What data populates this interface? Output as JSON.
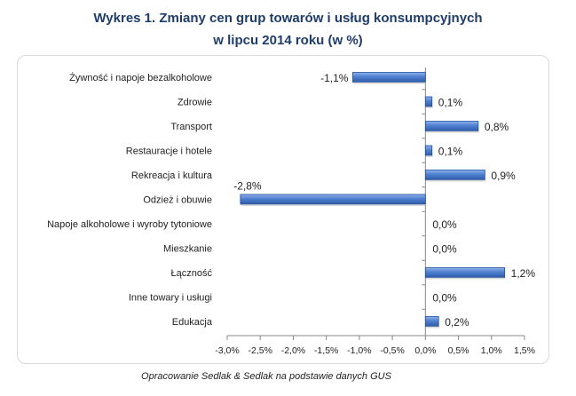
{
  "title_line1": "Wykres 1. Zmiany cen grup towarów i usług konsumpcyjnych",
  "title_line2": "w lipcu 2014 roku (w %)",
  "caption": "Opracowanie Sedlak & Sedlak na podstawie danych GUS",
  "colors": {
    "bar": "#4f7fcf",
    "bar_edge": "#1f4f9c",
    "title": "#1f3d6b"
  },
  "chart_data": {
    "type": "bar",
    "orientation": "horizontal",
    "categories": [
      "Żywność i napoje bezalkoholowe",
      "Zdrowie",
      "Transport",
      "Restauracje i hotele",
      "Rekreacja i kultura",
      "Odzież i obuwie",
      "Napoje alkoholowe i wyroby tytoniowe",
      "Mieszkanie",
      "Łączność",
      "Inne towary i usługi",
      "Edukacja"
    ],
    "values": [
      -1.1,
      0.1,
      0.8,
      0.1,
      0.9,
      -2.8,
      0.0,
      0.0,
      1.2,
      0.0,
      0.2
    ],
    "data_labels": [
      "-1,1%",
      "0,1%",
      "0,8%",
      "0,1%",
      "0,9%",
      "-2,8%",
      "0,0%",
      "0,0%",
      "1,2%",
      "0,0%",
      "0,2%"
    ],
    "xlim": [
      -3.0,
      1.5
    ],
    "ticks": [
      -3.0,
      -2.5,
      -2.0,
      -1.5,
      -1.0,
      -0.5,
      0.0,
      0.5,
      1.0,
      1.5
    ],
    "tick_labels": [
      "-3,0%",
      "-2,5%",
      "-2,0%",
      "-1,5%",
      "-1,0%",
      "-0,5%",
      "0,0%",
      "0,5%",
      "1,0%",
      "1,5%"
    ],
    "grid": false,
    "legend": "none"
  }
}
